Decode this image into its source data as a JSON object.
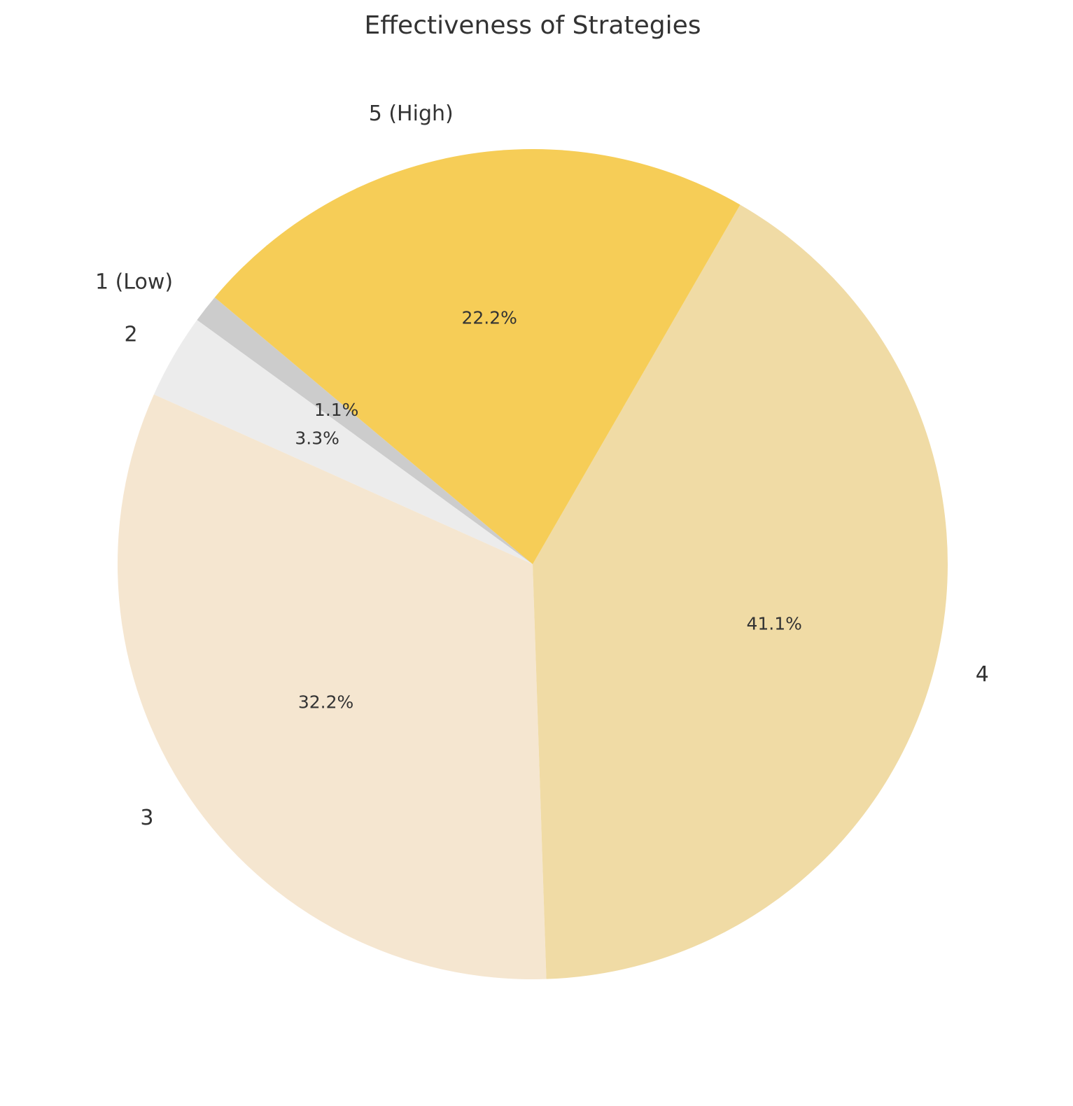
{
  "chart_data": {
    "type": "pie",
    "title": "Effectiveness of Strategies",
    "start_angle_deg": 140,
    "direction": "counterclockwise",
    "slices": [
      {
        "label": "1 (Low)",
        "value": 1.1,
        "pct_label": "1.1%",
        "color": "#cccccc"
      },
      {
        "label": "2",
        "value": 3.3,
        "pct_label": "3.3%",
        "color": "#ececec"
      },
      {
        "label": "3",
        "value": 32.2,
        "pct_label": "32.2%",
        "color": "#f5e6d0"
      },
      {
        "label": "4",
        "value": 41.1,
        "pct_label": "41.1%",
        "color": "#f0dba5"
      },
      {
        "label": "5 (High)",
        "value": 22.2,
        "pct_label": "22.2%",
        "color": "#f6cd57"
      }
    ]
  }
}
